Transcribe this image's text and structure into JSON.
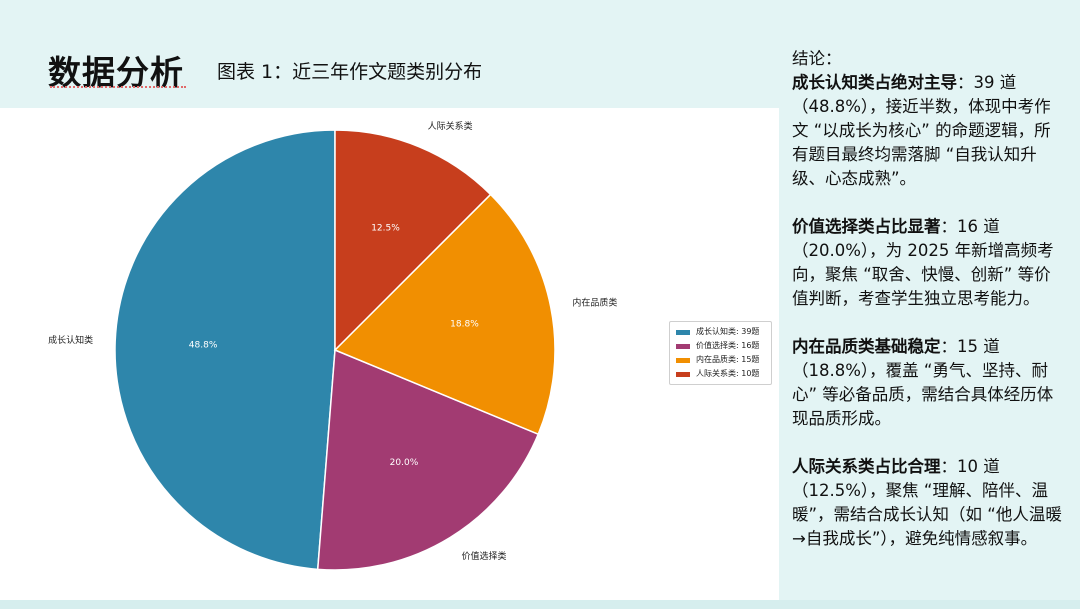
{
  "header": {
    "title": "数据分析",
    "caption": "图表 1：近三年作文题类别分布"
  },
  "chart_data": {
    "type": "pie",
    "categories": [
      "成长认知类",
      "价值选择类",
      "内在品质类",
      "人际关系类"
    ],
    "values": [
      39,
      16,
      15,
      10
    ],
    "percent_labels": [
      "48.8%",
      "20.0%",
      "18.8%",
      "12.5%"
    ],
    "colors": [
      "#2e86ab",
      "#a23b72",
      "#f18f01",
      "#c73e1d"
    ],
    "start": "12 o'clock, counter-clockwise",
    "legend": {
      "placement": "right",
      "entries": [
        "成长认知类: 39题",
        "价值选择类: 16题",
        "内在品质类: 15题",
        "人际关系类: 10题"
      ]
    }
  },
  "conclusion": {
    "heading": "结论：",
    "items": [
      {
        "lead": "成长认知类占绝对主导",
        "text": "：39 道（48.8%），接近半数，体现中考作文 “以成长为核心” 的命题逻辑，所有题目最终均需落脚 “自我认知升级、心态成熟”。"
      },
      {
        "lead": "价值选择类占比显著",
        "text": "：16 道（20.0%），为 2025 年新增高频考向，聚焦 “取舍、快慢、创新” 等价值判断，考查学生独立思考能力。"
      },
      {
        "lead": "内在品质类基础稳定",
        "text": "：15 道（18.8%），覆盖 “勇气、坚持、耐心” 等必备品质，需结合具体经历体现品质形成。"
      },
      {
        "lead": "人际关系类占比合理",
        "text": "：10 道（12.5%），聚焦 “理解、陪伴、温暖”，需结合成长认知（如 “他人温暖→自我成长”），避免纯情感叙事。"
      }
    ]
  }
}
